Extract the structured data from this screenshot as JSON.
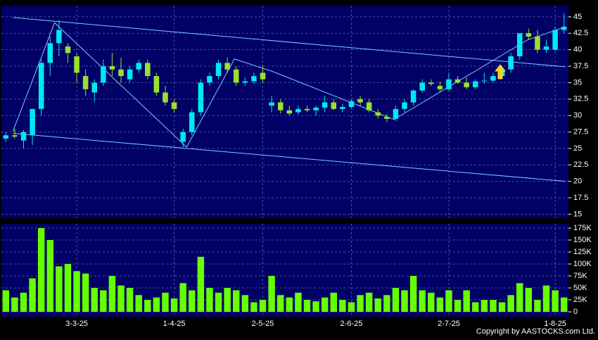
{
  "chart_data": [
    {
      "type": "candlestick",
      "open": [
        26.5,
        27,
        26.2,
        27,
        31,
        38,
        41,
        40.5,
        39,
        36,
        33.5,
        35,
        37.5,
        37,
        35.5,
        37,
        38,
        36,
        33.5,
        32,
        26,
        27.5,
        30.5,
        35,
        36,
        38,
        37,
        35,
        35.2,
        36.5,
        31.5,
        32,
        30.8,
        30.5,
        31,
        30.8,
        31.2,
        32,
        31,
        31.3,
        32.5,
        32,
        30.5,
        29.8,
        29.5,
        31,
        32,
        33.8,
        35,
        34.5,
        34,
        35.5,
        35,
        34.3,
        35.2,
        35.3,
        36,
        37,
        39,
        42.5,
        42,
        40,
        40,
        43
      ],
      "high": [
        27.5,
        28,
        27.8,
        31,
        38.5,
        42,
        44.5,
        41,
        39.5,
        37,
        35.5,
        38.5,
        39.5,
        38.8,
        37.5,
        38.5,
        38.5,
        36.5,
        34.5,
        32.5,
        28,
        31,
        35.5,
        36.5,
        38.5,
        38.8,
        37.5,
        35.8,
        36.5,
        37.5,
        33,
        32.5,
        31.5,
        31.5,
        31.5,
        31.5,
        33,
        32.5,
        31.8,
        32.5,
        33,
        32.5,
        31,
        30.2,
        31.5,
        32.5,
        34,
        35.5,
        35.5,
        35.2,
        36.5,
        36,
        35.8,
        35.5,
        36.5,
        36.5,
        37.5,
        39.5,
        42.5,
        43.2,
        43,
        41.5,
        43.5,
        45.5
      ],
      "low": [
        26,
        26.5,
        25,
        25.5,
        30,
        36,
        39,
        38,
        35,
        33,
        32,
        34.5,
        36,
        35,
        35,
        36.5,
        35.5,
        33,
        31.5,
        30.5,
        25.2,
        27,
        30,
        34.5,
        35.5,
        36.5,
        34.5,
        34.5,
        34.8,
        35,
        30.5,
        30.3,
        30,
        30.2,
        30.5,
        30,
        30.5,
        30.8,
        30.5,
        31,
        31.5,
        30.5,
        29.5,
        29,
        29.2,
        30.5,
        31.5,
        33.5,
        34.5,
        33.5,
        33.8,
        34.8,
        34,
        34,
        34.8,
        35,
        35.8,
        36.5,
        38.5,
        41.5,
        39.5,
        39.5,
        39.8,
        42.5
      ],
      "close": [
        27,
        26.8,
        27.5,
        31,
        38,
        41,
        43,
        39.5,
        36.5,
        34,
        35,
        37.5,
        37,
        36,
        37,
        38,
        36,
        33.5,
        32,
        31,
        27.5,
        30.5,
        35,
        36,
        38,
        37,
        35,
        35.2,
        36,
        35.5,
        32,
        30.8,
        30.3,
        31,
        30.8,
        31.2,
        32,
        31,
        31.3,
        32.2,
        32,
        30.8,
        30,
        29.5,
        31,
        32,
        33.8,
        35,
        34.8,
        34,
        35.5,
        35,
        34.3,
        35.2,
        35.3,
        36,
        37,
        39,
        42.5,
        42,
        40,
        40.5,
        43,
        43.5
      ],
      "up_color": "#00e8f0",
      "down_color": "#99e030",
      "xlim": [
        0,
        64
      ],
      "ylim": [
        14.4,
        46.7
      ],
      "yticks": [
        15,
        17.5,
        20,
        22.5,
        25,
        27.5,
        30,
        32.5,
        35,
        37.5,
        40,
        42.5,
        45
      ],
      "lines": [
        {
          "x": [
            0.8,
            63.2
          ],
          "y": [
            44.9,
            37.4
          ],
          "color": "#80c8ff"
        },
        {
          "x": [
            0.8,
            63.2
          ],
          "y": [
            27.3,
            20.0
          ],
          "color": "#80c8ff"
        },
        {
          "x": [
            0.8,
            5.5,
            20.4,
            25.8,
            30.1,
            43.8,
            58.9,
            63.2
          ],
          "y": [
            27.6,
            44.1,
            25.2,
            38.6,
            36.7,
            29.4,
            41.5,
            43.5
          ],
          "color": "#80c8ff"
        }
      ],
      "grid": true
    },
    {
      "type": "bar",
      "values": [
        45000,
        30000,
        40000,
        70000,
        175000,
        150000,
        95000,
        100000,
        85000,
        80000,
        50000,
        45000,
        75000,
        55000,
        50000,
        35000,
        25000,
        30000,
        40000,
        28000,
        60000,
        45000,
        115000,
        50000,
        40000,
        50000,
        45000,
        35000,
        20000,
        25000,
        75000,
        35000,
        30000,
        40000,
        25000,
        22000,
        30000,
        40000,
        25000,
        20000,
        35000,
        40000,
        28000,
        35000,
        50000,
        45000,
        75000,
        45000,
        40000,
        30000,
        45000,
        25000,
        45000,
        20000,
        25000,
        25000,
        20000,
        35000,
        60000,
        50000,
        25000,
        55000,
        45000,
        30000
      ],
      "color": "#66ff00",
      "xlim": [
        0,
        64
      ],
      "ylim": [
        -10300,
        183800
      ],
      "yticks": [
        0,
        {
          "value": 25000,
          "label": "25K"
        },
        {
          "value": 50000,
          "label": "50K"
        },
        {
          "value": 75000,
          "label": "75K"
        },
        {
          "value": 100000,
          "label": "100K"
        },
        {
          "value": 125000,
          "label": "125K"
        },
        {
          "value": 150000,
          "label": "150K"
        },
        {
          "value": 175000,
          "label": "175K"
        }
      ],
      "xticks": [
        {
          "value": 8,
          "label": "3-3-25"
        },
        {
          "value": 19,
          "label": "1-4-25"
        },
        {
          "value": 29,
          "label": "2-5-25"
        },
        {
          "value": 39,
          "label": "2-6-25"
        },
        {
          "value": 50,
          "label": "2-7-25"
        },
        {
          "value": 62,
          "label": "1-8-25"
        }
      ],
      "grid": true
    }
  ],
  "copyright": "Copyright by AASTOCKS.com Ltd."
}
